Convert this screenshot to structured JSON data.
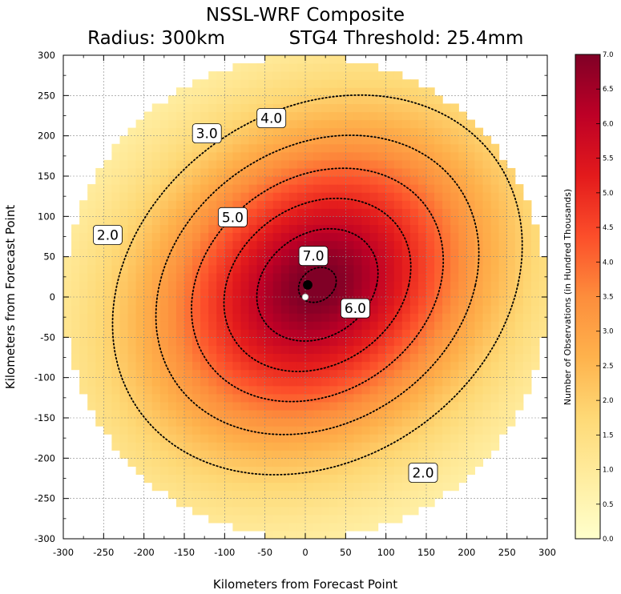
{
  "chart_data": {
    "type": "heatmap",
    "title_line1": "NSSL-WRF Composite",
    "title_radius": "Radius: 300km",
    "title_threshold": "STG4 Threshold: 25.4mm",
    "xlabel": "Kilometers from Forecast Point",
    "ylabel": "Kilometers from Forecast Point",
    "xlim": [
      -300,
      300
    ],
    "ylim": [
      -300,
      300
    ],
    "xticks": [
      "-300",
      "-250",
      "-200",
      "-150",
      "-100",
      "-50",
      "0",
      "50",
      "100",
      "150",
      "200",
      "250",
      "300"
    ],
    "yticks": [
      "300",
      "250",
      "200",
      "150",
      "100",
      "50",
      "0",
      "-50",
      "-100",
      "-150",
      "-200",
      "-250",
      "-300"
    ],
    "radius_km": 300,
    "grid": true,
    "colorscale": [
      "#ffffcc",
      "#ffeda0",
      "#fed976",
      "#feb24c",
      "#fd8d3c",
      "#fc4e2a",
      "#e31a1c",
      "#bd0026",
      "#800026"
    ],
    "field_peak": {
      "x": 15,
      "y": 15,
      "value": 7.2
    },
    "colorbar": {
      "label": "Number of Observations (in Hundred Thousands)",
      "range": [
        0.0,
        7.0
      ],
      "ticks": [
        "0.0",
        "0.5",
        "1.0",
        "1.5",
        "2.0",
        "2.5",
        "3.0",
        "3.5",
        "4.0",
        "4.5",
        "5.0",
        "5.5",
        "6.0",
        "6.5",
        "7.0"
      ]
    },
    "contours": [
      {
        "level": 2.0,
        "label": "2.0"
      },
      {
        "level": 3.0,
        "label": "3.0"
      },
      {
        "level": 4.0,
        "label": "4.0"
      },
      {
        "level": 5.0,
        "label": "5.0"
      },
      {
        "level": 6.0,
        "label": "6.0"
      },
      {
        "level": 7.0,
        "label": "7.0"
      }
    ],
    "contour_labels": [
      {
        "text": "2.0",
        "x": -245,
        "y": 77
      },
      {
        "text": "3.0",
        "x": -122,
        "y": 203
      },
      {
        "text": "4.0",
        "x": -42,
        "y": 222
      },
      {
        "text": "5.0",
        "x": -90,
        "y": 99
      },
      {
        "text": "7.0",
        "x": 10,
        "y": 51
      },
      {
        "text": "6.0",
        "x": 62,
        "y": -14
      },
      {
        "text": "2.0",
        "x": 146,
        "y": -218
      }
    ],
    "points": [
      {
        "name": "composite-max",
        "x": 3,
        "y": 15,
        "color": "#000000"
      },
      {
        "name": "forecast-point",
        "x": 0,
        "y": 0,
        "color": "#ffffff"
      }
    ]
  }
}
